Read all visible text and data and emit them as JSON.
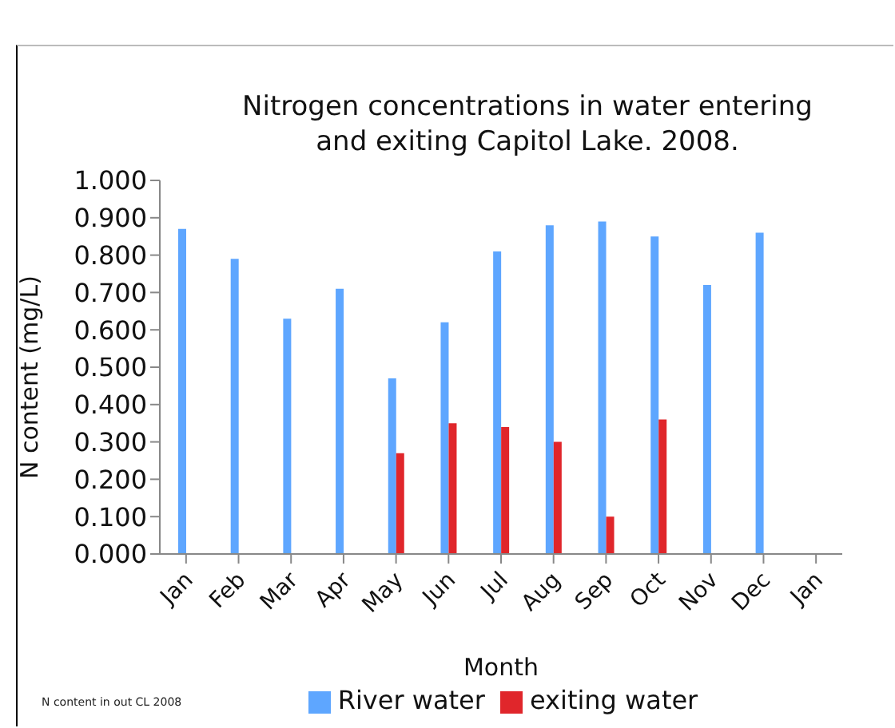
{
  "chart_data": {
    "type": "bar",
    "title": "Nitrogen concentrations in water entering\nand exiting Capitol Lake. 2008.",
    "xlabel": "Month",
    "ylabel": "N content (mg/L)",
    "categories": [
      "Jan",
      "Feb",
      "Mar",
      "Apr",
      "May",
      "Jun",
      "Jul",
      "Aug",
      "Sep",
      "Oct",
      "Nov",
      "Dec",
      "Jan"
    ],
    "series": [
      {
        "name": "River water",
        "color": "#5ea6ff",
        "values": [
          0.87,
          0.79,
          0.63,
          0.71,
          0.47,
          0.62,
          0.81,
          0.88,
          0.89,
          0.85,
          0.72,
          0.86,
          null
        ]
      },
      {
        "name": "exiting water",
        "color": "#e0262b",
        "values": [
          null,
          null,
          null,
          null,
          0.27,
          0.35,
          0.34,
          0.3,
          0.1,
          0.36,
          null,
          null,
          null
        ]
      }
    ],
    "ylim": [
      0,
      1
    ],
    "yticks": [
      {
        "value": 0,
        "label": "0.000"
      },
      {
        "value": 0.1,
        "label": "0.100"
      },
      {
        "value": 0.2,
        "label": "0.200"
      },
      {
        "value": 0.3,
        "label": "0.300"
      },
      {
        "value": 0.4,
        "label": "0.400"
      },
      {
        "value": 0.5,
        "label": "0.500"
      },
      {
        "value": 0.6,
        "label": "0.600"
      },
      {
        "value": 0.7,
        "label": "0.700"
      },
      {
        "value": 0.8,
        "label": "0.800"
      },
      {
        "value": 0.9,
        "label": "0.900"
      },
      {
        "value": 1,
        "label": "1.000"
      }
    ],
    "grid": false,
    "legend": "bottom",
    "annotations": [
      "N content in out CL 2008"
    ]
  }
}
